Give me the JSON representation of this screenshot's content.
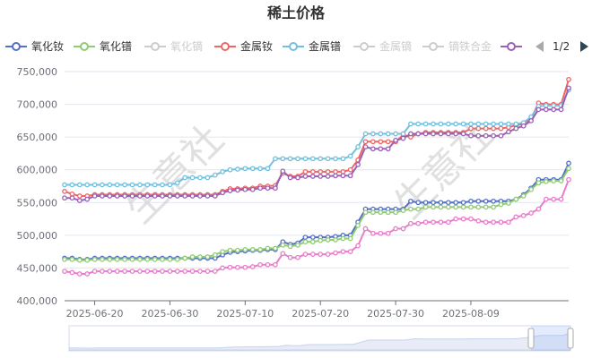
{
  "chart_data": {
    "type": "line",
    "title": "稀土价格",
    "xlabel": "",
    "ylabel": "",
    "ylim": [
      400000,
      750000
    ],
    "y_ticks": [
      400000,
      450000,
      500000,
      550000,
      600000,
      650000,
      700000,
      750000
    ],
    "y_tick_labels": [
      "400,000",
      "450,000",
      "500,000",
      "550,000",
      "600,000",
      "650,000",
      "700,000",
      "750,000"
    ],
    "x_tick_labels": [
      "2025-06-20",
      "2025-06-30",
      "2025-07-10",
      "2025-07-20",
      "2025-07-30",
      "2025-08-09"
    ],
    "x_tick_indices": [
      4,
      14,
      24,
      34,
      44,
      54
    ],
    "grid": "horizontal",
    "legend_position": "top",
    "legend": [
      {
        "name": "氧化钕",
        "color": "#5470c6",
        "active": true
      },
      {
        "name": "氧化镨",
        "color": "#91cc75",
        "active": true
      },
      {
        "name": "氧化镝",
        "color": "#cccccc",
        "active": false
      },
      {
        "name": "金属钕",
        "color": "#ee6666",
        "active": true
      },
      {
        "name": "金属镨",
        "color": "#73c0de",
        "active": true
      },
      {
        "name": "金属镝",
        "color": "#cccccc",
        "active": false
      },
      {
        "name": "镝铁合金",
        "color": "#cccccc",
        "active": false
      },
      {
        "name": "",
        "color": "#9a60b4",
        "active": true
      }
    ],
    "legend_pager": "1/2",
    "series": [
      {
        "name": "氧化钕",
        "color": "#5470c6",
        "values": [
          465000,
          465000,
          463000,
          463000,
          465000,
          465000,
          465000,
          465000,
          465000,
          465000,
          465000,
          465000,
          465000,
          465000,
          465000,
          465000,
          465000,
          465000,
          465000,
          465000,
          465000,
          470000,
          474000,
          475000,
          476000,
          477000,
          477000,
          478000,
          478000,
          490000,
          486000,
          488000,
          497000,
          497000,
          497000,
          497000,
          498000,
          500000,
          500000,
          520000,
          540000,
          540000,
          540000,
          540000,
          540000,
          540000,
          552000,
          550000,
          550000,
          550000,
          550000,
          550000,
          550000,
          550000,
          552000,
          552000,
          552000,
          552000,
          552000,
          552000,
          555000,
          562000,
          572000,
          585000,
          585000,
          585000,
          585000,
          610000
        ]
      },
      {
        "name": "氧化镨",
        "color": "#91cc75",
        "values": [
          463000,
          463000,
          462000,
          462000,
          463000,
          463000,
          463000,
          463000,
          463000,
          463000,
          463000,
          463000,
          463000,
          463000,
          463000,
          463000,
          465000,
          467000,
          467000,
          467000,
          470000,
          475000,
          477000,
          477000,
          478000,
          478000,
          478000,
          480000,
          480000,
          485000,
          483000,
          485000,
          490000,
          490000,
          492000,
          493000,
          493000,
          495000,
          495000,
          515000,
          535000,
          535000,
          535000,
          535000,
          535000,
          538000,
          540000,
          540000,
          543000,
          543000,
          543000,
          543000,
          543000,
          543000,
          543000,
          543000,
          543000,
          543000,
          547000,
          549000,
          555000,
          560000,
          570000,
          580000,
          582000,
          583000,
          583000,
          602000
        ]
      },
      {
        "name": "金属钕",
        "color": "#ee6666",
        "values": [
          567000,
          563000,
          560000,
          560000,
          562000,
          562000,
          562000,
          562000,
          562000,
          562000,
          562000,
          562000,
          562000,
          562000,
          562000,
          562000,
          562000,
          562000,
          562000,
          562000,
          562000,
          567000,
          571000,
          571000,
          572000,
          572000,
          575000,
          575000,
          576000,
          595000,
          590000,
          590000,
          597000,
          597000,
          597000,
          597000,
          597000,
          597000,
          600000,
          615000,
          643000,
          643000,
          643000,
          643000,
          643000,
          653000,
          650000,
          655000,
          657000,
          657000,
          657000,
          657000,
          657000,
          657000,
          663000,
          663000,
          663000,
          663000,
          663000,
          665000,
          668000,
          670000,
          678000,
          702000,
          700000,
          700000,
          700000,
          738000
        ]
      },
      {
        "name": "金属镨",
        "color": "#73c0de",
        "values": [
          577000,
          577000,
          577000,
          577000,
          577000,
          577000,
          577000,
          577000,
          577000,
          577000,
          577000,
          577000,
          577000,
          577000,
          577000,
          580000,
          588000,
          588000,
          588000,
          588000,
          592000,
          597000,
          600000,
          601000,
          602000,
          602000,
          602000,
          602000,
          617000,
          617000,
          617000,
          617000,
          617000,
          617000,
          617000,
          617000,
          617000,
          617000,
          621000,
          635000,
          655000,
          655000,
          655000,
          655000,
          655000,
          655000,
          670000,
          670000,
          670000,
          670000,
          670000,
          670000,
          670000,
          670000,
          670000,
          670000,
          670000,
          670000,
          670000,
          670000,
          670000,
          672000,
          681000,
          697000,
          698000,
          698000,
          698000,
          722000
        ]
      },
      {
        "name": "",
        "color": "#9a60b4",
        "values": [
          557000,
          557000,
          553000,
          555000,
          560000,
          560000,
          560000,
          560000,
          560000,
          560000,
          560000,
          560000,
          560000,
          560000,
          560000,
          560000,
          560000,
          560000,
          560000,
          560000,
          560000,
          565000,
          568000,
          569000,
          570000,
          570000,
          572000,
          572000,
          572000,
          598000,
          588000,
          588000,
          590000,
          590000,
          590000,
          590000,
          591000,
          591000,
          591000,
          608000,
          635000,
          632000,
          632000,
          632000,
          645000,
          648000,
          655000,
          655000,
          655000,
          655000,
          655000,
          655000,
          655000,
          655000,
          652000,
          652000,
          652000,
          652000,
          652000,
          658000,
          663000,
          667000,
          675000,
          692000,
          692000,
          692000,
          692000,
          725000
        ]
      },
      {
        "name": "",
        "color": "#ea7ccc",
        "values": [
          445000,
          443000,
          441000,
          441000,
          445000,
          445000,
          445000,
          445000,
          445000,
          445000,
          445000,
          445000,
          445000,
          445000,
          445000,
          445000,
          445000,
          445000,
          445000,
          445000,
          445000,
          450000,
          451000,
          451000,
          451000,
          452000,
          455000,
          455000,
          455000,
          472000,
          466000,
          466000,
          471000,
          471000,
          471000,
          471000,
          473000,
          475000,
          475000,
          484000,
          510000,
          503000,
          503000,
          503000,
          510000,
          510000,
          518000,
          518000,
          520000,
          520000,
          520000,
          520000,
          525000,
          525000,
          525000,
          522000,
          520000,
          520000,
          520000,
          520000,
          528000,
          530000,
          534000,
          540000,
          555000,
          555000,
          555000,
          585000
        ]
      }
    ]
  },
  "watermark": [
    "生意社",
    "生意社"
  ]
}
